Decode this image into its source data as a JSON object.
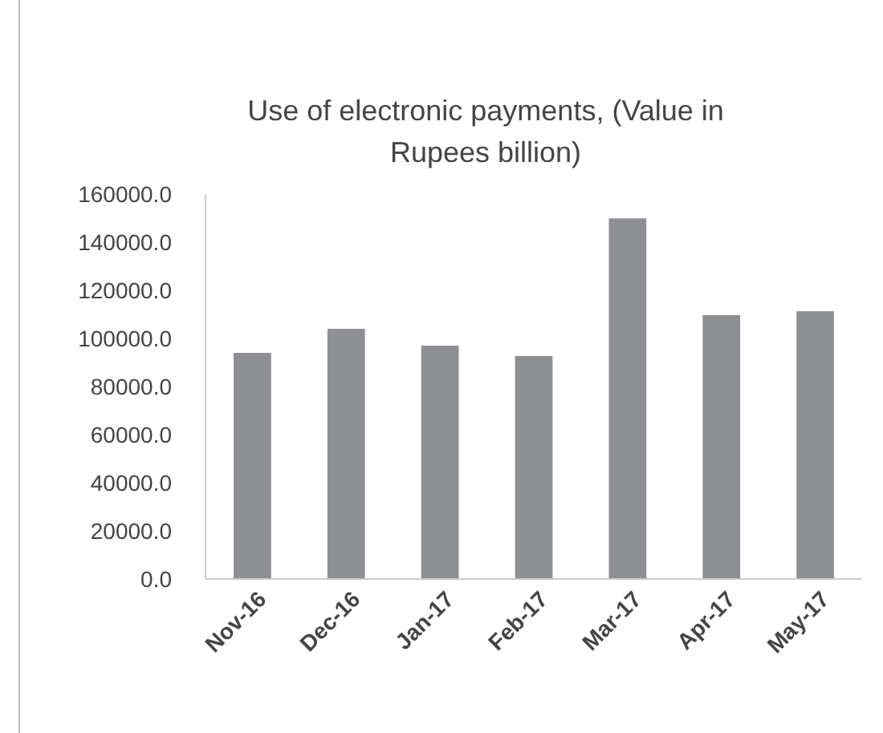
{
  "chart_data": {
    "type": "bar",
    "title": "Use of electronic payments, (Value in Rupees billion)",
    "categories": [
      "Nov-16",
      "Dec-16",
      "Jan-17",
      "Feb-17",
      "Mar-17",
      "Apr-17",
      "May-17"
    ],
    "values": [
      94000,
      104000,
      97000,
      92700,
      149900,
      109700,
      111300
    ],
    "color": "#8e8f93",
    "ylim": [
      0,
      160000
    ],
    "yticks": [
      {
        "value": 0,
        "label": "0.0"
      },
      {
        "value": 20000,
        "label": "20000.0"
      },
      {
        "value": 40000,
        "label": "40000.0"
      },
      {
        "value": 60000,
        "label": "60000.0"
      },
      {
        "value": 80000,
        "label": "80000.0"
      },
      {
        "value": 100000,
        "label": "100000.0"
      },
      {
        "value": 120000,
        "label": "120000.0"
      },
      {
        "value": 140000,
        "label": "140000.0"
      },
      {
        "value": 160000,
        "label": "160000.0"
      }
    ]
  }
}
